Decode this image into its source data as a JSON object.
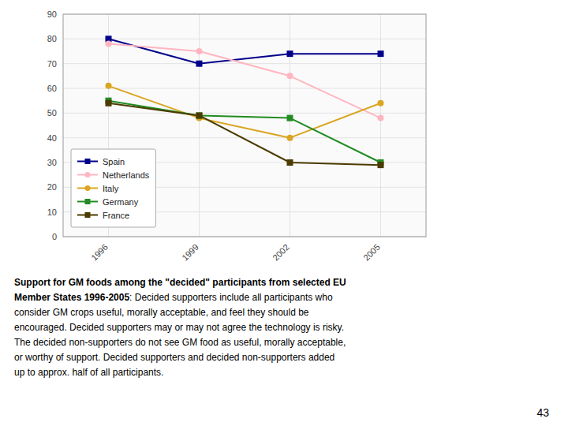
{
  "chart_data": {
    "type": "line",
    "x": [
      1996,
      1999,
      2002,
      2005
    ],
    "series": [
      {
        "name": "Spain",
        "color": "#00008B",
        "marker": "square",
        "values": [
          80,
          70,
          74,
          74
        ]
      },
      {
        "name": "Netherlands",
        "color": "#FFB6C1",
        "marker": "circle",
        "values": [
          78,
          75,
          65,
          48
        ]
      },
      {
        "name": "Italy",
        "color": "#DAA520",
        "marker": "circle",
        "values": [
          61,
          48,
          40,
          54
        ]
      },
      {
        "name": "Germany",
        "color": "#228B22",
        "marker": "square",
        "values": [
          55,
          49,
          48,
          30
        ]
      },
      {
        "name": "France",
        "color": "#4B3B00",
        "marker": "square",
        "values": [
          54,
          49,
          30,
          29
        ]
      }
    ],
    "xlim": [
      1994.5,
      2006.5
    ],
    "xticks": [
      1996,
      1999,
      2002,
      2005
    ],
    "ylim": [
      0,
      90
    ],
    "yticks": [
      0,
      10,
      20,
      30,
      40,
      50,
      60,
      70,
      80,
      90
    ],
    "grid": true,
    "legend": "lower left",
    "annotations": [
      "Support for GM foods among the \"decided\" participants from selected EU",
      "Member States 1996-2005",
      ": Decided supporters include all participants who",
      "consider GM crops useful, morally acceptable, and feel they should be",
      "encouraged. Decided supporters may or may not agree the technology is risky.",
      "The decided non-supporters do not see GM food as useful, morally acceptable,",
      "or worthy of support. Decided supporters and decided non-supporters added",
      "up to approx. half of all participants.",
      "43"
    ]
  }
}
